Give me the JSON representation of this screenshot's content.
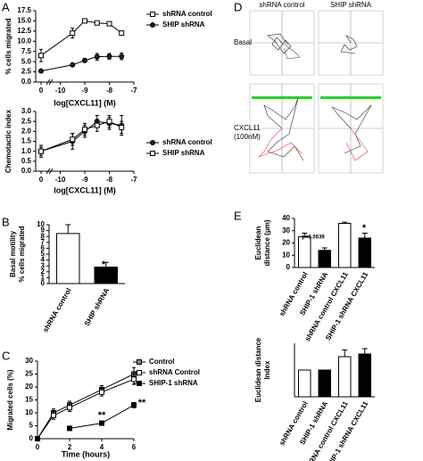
{
  "panel_letters": [
    "A",
    "B",
    "C",
    "D",
    "E"
  ],
  "tracking": {
    "columns": [
      "shRNA control",
      "SHIP shRNA"
    ],
    "rows": [
      [
        "Basal"
      ],
      [
        "CXCL11",
        "(100nM)"
      ]
    ]
  },
  "chart_data": [
    {
      "type": "line",
      "axis_break": true,
      "x_label": "log[CXCL11] (M)",
      "y_label": [
        "% cells migrated"
      ],
      "x": [
        0,
        -9.5,
        -9,
        -8.5,
        -8,
        -7.5
      ],
      "xlim": [
        -10.2,
        -7
      ],
      "xticks": [
        0,
        -10,
        -9,
        -8,
        -7
      ],
      "ylim": [
        0,
        17.5
      ],
      "yticks": [
        {
          "value": 0,
          "label": "0.0"
        },
        2.5,
        {
          "value": 5,
          "label": "5.0"
        },
        7.5,
        {
          "value": 10,
          "label": "10.0"
        },
        12.5,
        {
          "value": 15,
          "label": "15.0"
        },
        17.5
      ],
      "series": [
        {
          "name": "shRNA control",
          "color": "#ffffff",
          "marker": "square",
          "values": [
            6.5,
            12,
            15,
            14.5,
            14.3,
            12
          ],
          "errors": [
            1.5,
            1.2,
            0.3,
            0.3,
            0.4,
            0.4
          ]
        },
        {
          "name": "SHIP shRNA",
          "color": "#222222",
          "marker": "circle",
          "values": [
            2.7,
            4.2,
            5.3,
            6.2,
            6.3,
            6.3
          ],
          "errors": [
            0.3,
            0.4,
            0.5,
            0.8,
            0.7,
            0.8
          ]
        }
      ]
    },
    {
      "type": "line",
      "axis_break": true,
      "x_label": "log[CXCL11] (M)",
      "y_label": [
        "Chemotactic index"
      ],
      "x": [
        0,
        -9.5,
        -9,
        -8.5,
        -8,
        -7.5
      ],
      "xlim": [
        -10.2,
        -7
      ],
      "xticks": [
        0,
        -10,
        -9,
        -8,
        -7
      ],
      "ylim": [
        0,
        3
      ],
      "yticks": [
        {
          "value": 0,
          "label": "0.0"
        },
        0.5,
        {
          "value": 1,
          "label": "1.0"
        },
        1.5,
        {
          "value": 2,
          "label": "2.0"
        },
        2.5,
        {
          "value": 3,
          "label": "3.0"
        }
      ],
      "series": [
        {
          "name": "shRNA control",
          "color": "#222222",
          "marker": "circle",
          "values": [
            1.0,
            1.5,
            2.0,
            2.5,
            2.4,
            2.3
          ],
          "errors": [
            0.3,
            0.4,
            0.3,
            0.3,
            0.3,
            0.5
          ]
        },
        {
          "name": "SHIP shRNA",
          "color": "#ffffff",
          "marker": "square",
          "values": [
            1.0,
            1.6,
            2.1,
            2.3,
            2.5,
            2.2
          ],
          "errors": [
            0.2,
            0.3,
            0.3,
            0.3,
            0.3,
            0.3
          ]
        }
      ]
    },
    {
      "type": "bar",
      "y_label": [
        "Basal motility",
        "% cells migrated"
      ],
      "categories": [
        "shRNA control",
        "SHIP shRNA"
      ],
      "values": [
        8.5,
        2.8
      ],
      "errors": [
        1.5,
        0.8
      ],
      "colors": [
        "#ffffff",
        "#000000"
      ],
      "ylim": [
        0,
        10
      ],
      "yticks": [
        0,
        1,
        2,
        3,
        4,
        5,
        6,
        7,
        8,
        9,
        10
      ],
      "annotations": [
        "*"
      ]
    },
    {
      "type": "line",
      "x_label": "Time (hours)",
      "y_label": [
        "Migrated cells (%)"
      ],
      "x": [
        0,
        1,
        2,
        4,
        6
      ],
      "xlim": [
        0,
        6
      ],
      "xticks": [
        0,
        2,
        4,
        6
      ],
      "ylim": [
        0,
        30
      ],
      "yticks": [
        0,
        5,
        10,
        15,
        20,
        25,
        30
      ],
      "series": [
        {
          "name": "Control",
          "color": "#888888",
          "marker": "square",
          "values": [
            0,
            10,
            13,
            19,
            25
          ],
          "errors": [
            0,
            1.5,
            1.5,
            1.5,
            2.5
          ]
        },
        {
          "name": "shRNA Control",
          "color": "#ffffff",
          "marker": "square",
          "values": [
            0,
            9,
            12,
            18,
            23
          ],
          "errors": [
            0,
            1.5,
            1.5,
            1.5,
            2
          ]
        },
        {
          "name": "SHIP-1 shRNA",
          "color": "#000000",
          "marker": "square",
          "values": [
            0,
            null,
            4,
            6,
            13
          ],
          "errors": [
            0,
            null,
            0.5,
            0.8,
            1
          ]
        }
      ],
      "annotations": [
        "**",
        "**"
      ]
    },
    {
      "type": "bar",
      "y_label": [
        "Euclidean",
        "distance (μm)"
      ],
      "categories": [
        "shRNA control",
        "SHIP-1 shRNA",
        "shRNA control CXCL11",
        "SHIP-1 shRNA CXCL11"
      ],
      "values": [
        25,
        14,
        36,
        24
      ],
      "errors": [
        3,
        2,
        1,
        4
      ],
      "colors": [
        "#ffffff",
        "#000000",
        "#ffffff",
        "#000000"
      ],
      "ylim": [
        0,
        40
      ],
      "yticks": [
        0,
        10,
        20,
        30,
        40
      ],
      "annotations": [
        "p=0.0639",
        "*"
      ]
    },
    {
      "type": "bar",
      "y_label": [
        "Euclidean distance",
        "Index"
      ],
      "categories": [
        "shRNA control",
        "SHIP-1 shRNA",
        "shRNA control CXCL11",
        "SHIP-1 shRNA CXCL11"
      ],
      "values": [
        1.0,
        1.0,
        1.5,
        1.6
      ],
      "errors": [
        0,
        0,
        0.25,
        0.2
      ],
      "colors": [
        "#ffffff",
        "#000000",
        "#ffffff",
        "#000000"
      ],
      "ylim": [
        0,
        2
      ]
    }
  ]
}
